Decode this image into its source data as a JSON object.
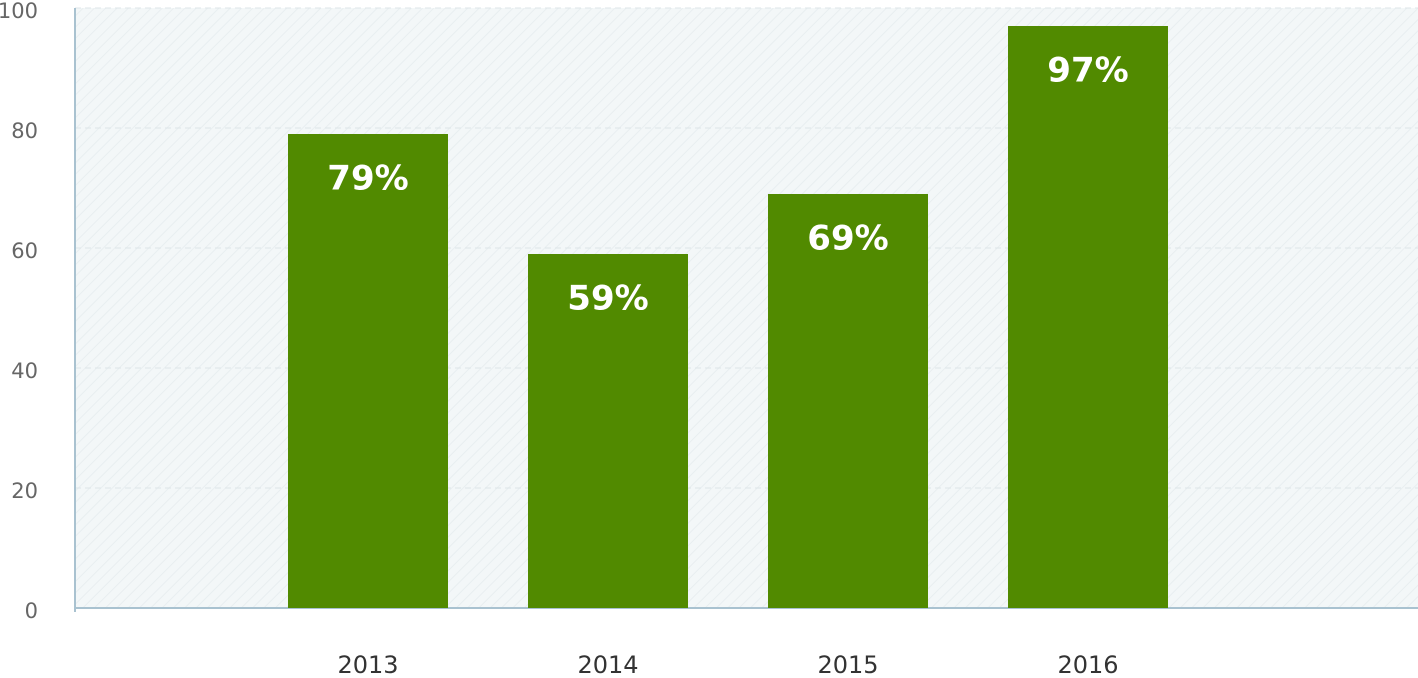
{
  "chart_data": {
    "type": "bar",
    "categories": [
      "2013",
      "2014",
      "2015",
      "2016"
    ],
    "values": [
      79,
      59,
      69,
      97
    ],
    "value_labels": [
      "79%",
      "59%",
      "69%",
      "97%"
    ],
    "color": "#518a00",
    "ylim": [
      0,
      100
    ],
    "yticks": [
      0,
      20,
      40,
      60,
      80,
      100
    ],
    "grid": true
  }
}
